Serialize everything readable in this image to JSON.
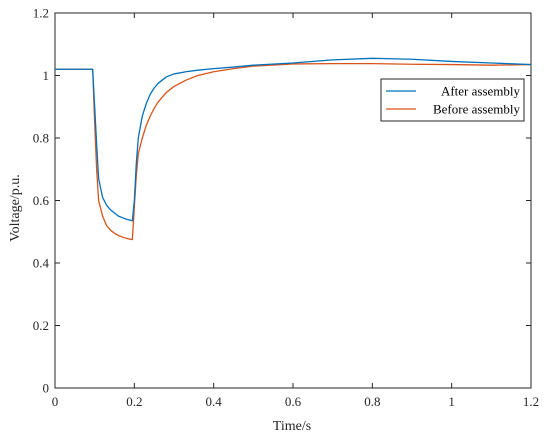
{
  "chart_data": {
    "type": "line",
    "title": "",
    "xlabel": "Time/s",
    "ylabel": "Voltage/p.u.",
    "xlim": [
      0,
      1.2
    ],
    "ylim": [
      0,
      1.2
    ],
    "xticks": [
      0,
      0.2,
      0.4,
      0.6,
      0.8,
      1,
      1.2
    ],
    "yticks": [
      0,
      0.2,
      0.4,
      0.6,
      0.8,
      1,
      1.2
    ],
    "xtick_labels": [
      "0",
      "0.2",
      "0.4",
      "0.6",
      "0.8",
      "1",
      "1.2"
    ],
    "ytick_labels": [
      "0",
      "0.2",
      "0.4",
      "0.6",
      "0.8",
      "1",
      "1.2"
    ],
    "grid": false,
    "legend_position": "upper-right",
    "series": [
      {
        "name": "After assembly",
        "color": "#0072BD",
        "x": [
          0,
          0.095,
          0.1,
          0.105,
          0.11,
          0.12,
          0.13,
          0.14,
          0.15,
          0.16,
          0.17,
          0.18,
          0.19,
          0.195,
          0.2,
          0.205,
          0.21,
          0.22,
          0.23,
          0.24,
          0.25,
          0.26,
          0.28,
          0.3,
          0.33,
          0.36,
          0.4,
          0.45,
          0.5,
          0.6,
          0.7,
          0.8,
          0.9,
          1.0,
          1.1,
          1.2
        ],
        "y": [
          1.02,
          1.02,
          0.9,
          0.78,
          0.67,
          0.61,
          0.585,
          0.57,
          0.56,
          0.55,
          0.545,
          0.54,
          0.537,
          0.535,
          0.6,
          0.72,
          0.8,
          0.87,
          0.91,
          0.94,
          0.96,
          0.975,
          0.995,
          1.005,
          1.012,
          1.017,
          1.022,
          1.027,
          1.033,
          1.04,
          1.05,
          1.055,
          1.052,
          1.045,
          1.04,
          1.035
        ]
      },
      {
        "name": "Before assembly",
        "color": "#D95319",
        "x": [
          0,
          0.095,
          0.1,
          0.105,
          0.11,
          0.12,
          0.13,
          0.14,
          0.15,
          0.16,
          0.17,
          0.18,
          0.19,
          0.195,
          0.2,
          0.205,
          0.21,
          0.22,
          0.23,
          0.24,
          0.25,
          0.26,
          0.28,
          0.3,
          0.33,
          0.36,
          0.4,
          0.45,
          0.5,
          0.6,
          0.7,
          0.8,
          0.9,
          1.0,
          1.1,
          1.2
        ],
        "y": [
          1.02,
          1.02,
          0.85,
          0.7,
          0.6,
          0.55,
          0.52,
          0.505,
          0.495,
          0.488,
          0.483,
          0.479,
          0.476,
          0.475,
          0.58,
          0.68,
          0.75,
          0.8,
          0.84,
          0.87,
          0.895,
          0.915,
          0.945,
          0.965,
          0.985,
          1.0,
          1.012,
          1.022,
          1.03,
          1.037,
          1.038,
          1.038,
          1.036,
          1.035,
          1.033,
          1.035
        ]
      }
    ]
  }
}
